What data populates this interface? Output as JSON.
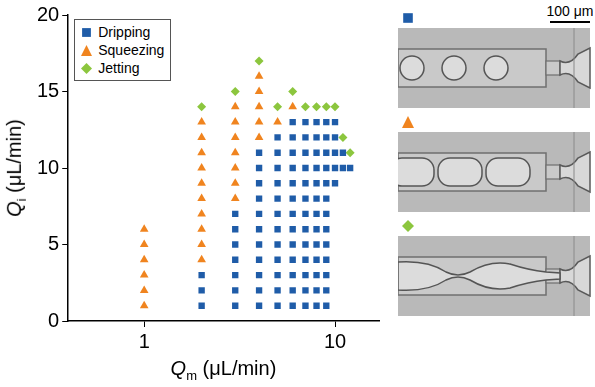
{
  "chart_data": {
    "type": "scatter",
    "x_label": "Qm (μL/min)",
    "y_label": "Qi (μL/min)",
    "log": "x",
    "xlim": [
      0.4,
      17
    ],
    "xticks": [
      1,
      10
    ],
    "ylim": [
      0,
      20
    ],
    "yticks": [
      0,
      5,
      10,
      15,
      20
    ],
    "grid": false,
    "legend": "top-left",
    "series": [
      {
        "name": "Dripping",
        "color": "#1f5ca8",
        "marker": "square",
        "x": [
          2,
          2,
          2,
          3,
          3,
          3,
          3,
          3,
          3,
          3,
          4,
          4,
          4,
          4,
          4,
          4,
          4,
          4,
          4,
          4,
          4,
          5,
          5,
          5,
          5,
          5,
          5,
          5,
          5,
          5,
          5,
          5,
          5,
          6,
          6,
          6,
          6,
          6,
          6,
          6,
          6,
          6,
          6,
          6,
          6,
          6,
          7,
          7,
          7,
          7,
          7,
          7,
          7,
          7,
          7,
          7,
          7,
          7,
          7,
          8,
          8,
          8,
          8,
          8,
          8,
          8,
          8,
          8,
          8,
          8,
          8,
          8,
          9,
          9,
          9,
          9,
          9,
          9,
          9,
          9,
          9,
          9,
          9,
          9,
          9,
          10,
          10,
          10,
          10,
          10,
          11,
          11,
          12
        ],
        "values": [
          1,
          2,
          3,
          1,
          2,
          3,
          4,
          5,
          6,
          7,
          1,
          2,
          3,
          4,
          5,
          6,
          7,
          8,
          9,
          10,
          11,
          1,
          2,
          3,
          4,
          5,
          6,
          7,
          8,
          9,
          10,
          11,
          12,
          1,
          2,
          3,
          4,
          5,
          6,
          7,
          8,
          9,
          10,
          11,
          12,
          13,
          1,
          2,
          3,
          4,
          5,
          6,
          7,
          8,
          9,
          10,
          11,
          12,
          13,
          1,
          2,
          3,
          4,
          5,
          6,
          7,
          8,
          9,
          10,
          11,
          12,
          13,
          1,
          2,
          3,
          4,
          5,
          6,
          7,
          8,
          9,
          10,
          11,
          12,
          13,
          9,
          10,
          11,
          12,
          13,
          10,
          11,
          10
        ]
      },
      {
        "name": "Squeezing",
        "color": "#f0841f",
        "marker": "triangle",
        "x": [
          1,
          1,
          1,
          1,
          1,
          1,
          2,
          2,
          2,
          2,
          2,
          2,
          2,
          2,
          2,
          2,
          3,
          3,
          3,
          3,
          3,
          3,
          3,
          4,
          4,
          4,
          4,
          4,
          5,
          6
        ],
        "values": [
          1,
          2,
          3,
          4,
          5,
          6,
          4,
          5,
          6,
          7,
          8,
          9,
          10,
          11,
          12,
          13,
          8,
          9,
          10,
          11,
          12,
          13,
          14,
          12,
          13,
          14,
          15,
          16,
          13,
          14
        ]
      },
      {
        "name": "Jetting",
        "color": "#8cc63e",
        "marker": "diamond",
        "x": [
          2,
          3,
          4,
          5,
          6,
          7,
          8,
          9,
          10,
          11,
          12
        ],
        "values": [
          14,
          15,
          17,
          14,
          15,
          14,
          14,
          14,
          14,
          12,
          11
        ]
      }
    ]
  },
  "scale_bar": "100 μm"
}
